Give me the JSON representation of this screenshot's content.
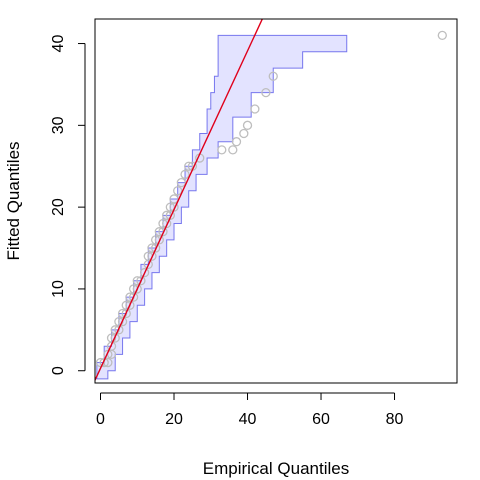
{
  "chart_data": {
    "type": "scatter",
    "xlabel": "Empirical Quantiles",
    "ylabel": "Fitted Quantiles",
    "xlim": [
      -1.5,
      97
    ],
    "ylim": [
      -1.5,
      43
    ],
    "xticks": [
      0,
      20,
      40,
      60,
      80
    ],
    "yticks": [
      0,
      10,
      20,
      30,
      40
    ],
    "grid": false,
    "colors": {
      "points": "#bebebe",
      "reference_line": "#e0001b",
      "band_fill": "#e3e3ff",
      "band_edge": "#7777ee"
    },
    "points": [
      {
        "x": 0,
        "y": 1
      },
      {
        "x": 1,
        "y": 1
      },
      {
        "x": 2,
        "y": 1
      },
      {
        "x": 2,
        "y": 2
      },
      {
        "x": 3,
        "y": 2
      },
      {
        "x": 3,
        "y": 3
      },
      {
        "x": 3,
        "y": 4
      },
      {
        "x": 4,
        "y": 4
      },
      {
        "x": 4,
        "y": 5
      },
      {
        "x": 5,
        "y": 5
      },
      {
        "x": 5,
        "y": 6
      },
      {
        "x": 6,
        "y": 6
      },
      {
        "x": 6,
        "y": 7
      },
      {
        "x": 7,
        "y": 7
      },
      {
        "x": 7,
        "y": 8
      },
      {
        "x": 8,
        "y": 8
      },
      {
        "x": 8,
        "y": 9
      },
      {
        "x": 9,
        "y": 9
      },
      {
        "x": 9,
        "y": 10
      },
      {
        "x": 10,
        "y": 10
      },
      {
        "x": 10,
        "y": 11
      },
      {
        "x": 11,
        "y": 11
      },
      {
        "x": 12,
        "y": 12
      },
      {
        "x": 13,
        "y": 13
      },
      {
        "x": 13,
        "y": 14
      },
      {
        "x": 14,
        "y": 14
      },
      {
        "x": 14,
        "y": 15
      },
      {
        "x": 15,
        "y": 15
      },
      {
        "x": 15,
        "y": 16
      },
      {
        "x": 16,
        "y": 16
      },
      {
        "x": 16,
        "y": 17
      },
      {
        "x": 17,
        "y": 17
      },
      {
        "x": 17,
        "y": 18
      },
      {
        "x": 18,
        "y": 18
      },
      {
        "x": 18,
        "y": 19
      },
      {
        "x": 19,
        "y": 19
      },
      {
        "x": 19,
        "y": 20
      },
      {
        "x": 20,
        "y": 20
      },
      {
        "x": 20,
        "y": 21
      },
      {
        "x": 21,
        "y": 22
      },
      {
        "x": 22,
        "y": 23
      },
      {
        "x": 23,
        "y": 24
      },
      {
        "x": 24,
        "y": 25
      },
      {
        "x": 25,
        "y": 25
      },
      {
        "x": 27,
        "y": 26
      },
      {
        "x": 33,
        "y": 27
      },
      {
        "x": 36,
        "y": 27
      },
      {
        "x": 37,
        "y": 28
      },
      {
        "x": 39,
        "y": 29
      },
      {
        "x": 40,
        "y": 30
      },
      {
        "x": 42,
        "y": 32
      },
      {
        "x": 45,
        "y": 34
      },
      {
        "x": 47,
        "y": 36
      },
      {
        "x": 93,
        "y": 41
      }
    ],
    "reference_line": {
      "intercept": 0.3,
      "slope": 0.97
    },
    "band_upper": [
      {
        "x": -1,
        "y": 1
      },
      {
        "x": 1,
        "y": 3
      },
      {
        "x": 3,
        "y": 5
      },
      {
        "x": 5,
        "y": 7
      },
      {
        "x": 7,
        "y": 9
      },
      {
        "x": 9,
        "y": 11
      },
      {
        "x": 11,
        "y": 13
      },
      {
        "x": 13,
        "y": 15
      },
      {
        "x": 15,
        "y": 17
      },
      {
        "x": 17,
        "y": 19
      },
      {
        "x": 19,
        "y": 21
      },
      {
        "x": 21,
        "y": 23
      },
      {
        "x": 23,
        "y": 25
      },
      {
        "x": 25,
        "y": 27
      },
      {
        "x": 27,
        "y": 29
      },
      {
        "x": 29,
        "y": 32
      },
      {
        "x": 30,
        "y": 34
      },
      {
        "x": 31,
        "y": 36
      },
      {
        "x": 32,
        "y": 41
      },
      {
        "x": 67,
        "y": 41
      }
    ],
    "band_lower": [
      {
        "x": 67,
        "y": 41
      },
      {
        "x": 55,
        "y": 39
      },
      {
        "x": 47,
        "y": 37
      },
      {
        "x": 41,
        "y": 34
      },
      {
        "x": 36,
        "y": 31
      },
      {
        "x": 32,
        "y": 28
      },
      {
        "x": 29,
        "y": 26
      },
      {
        "x": 26,
        "y": 24
      },
      {
        "x": 24,
        "y": 22
      },
      {
        "x": 22,
        "y": 20
      },
      {
        "x": 20,
        "y": 18
      },
      {
        "x": 18,
        "y": 16
      },
      {
        "x": 16,
        "y": 14
      },
      {
        "x": 14,
        "y": 12
      },
      {
        "x": 12,
        "y": 10
      },
      {
        "x": 10,
        "y": 8
      },
      {
        "x": 8,
        "y": 6
      },
      {
        "x": 6,
        "y": 4
      },
      {
        "x": 4,
        "y": 2
      },
      {
        "x": 2,
        "y": 0
      },
      {
        "x": -1,
        "y": -1
      }
    ]
  }
}
